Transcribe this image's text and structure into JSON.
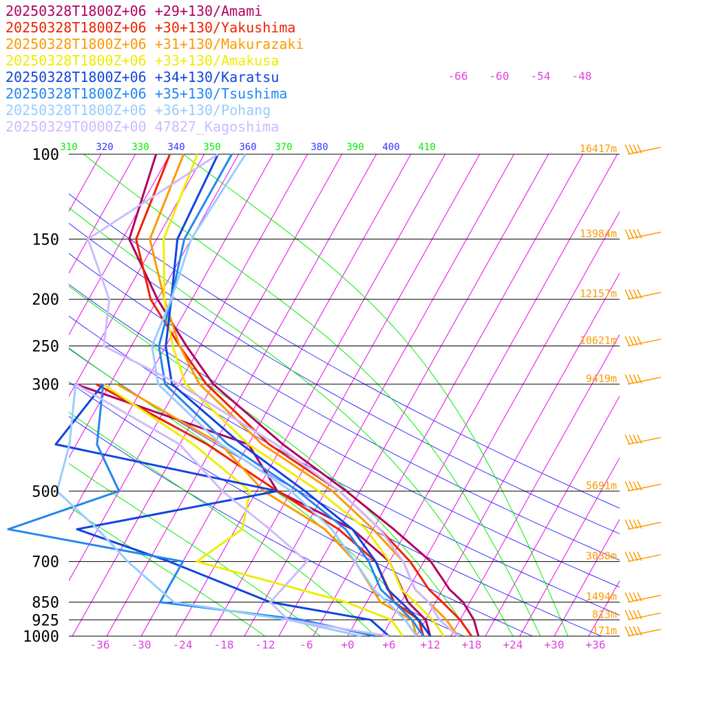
{
  "chart_data": {
    "type": "line",
    "title": "",
    "xlabel": "",
    "ylabel": "",
    "xlim": [
      -40,
      40
    ],
    "plim": [
      1000,
      100
    ],
    "legend_position": "top-left",
    "colors": {
      "isobar": "#000000",
      "isotherm": "#ee00ee",
      "dry_adiabat": "#3333ff",
      "moist_adiabat": "#00ee00",
      "height_label": "#ff9900",
      "wind_barb": "#ff9900",
      "temp_tick": "#dd44dd"
    },
    "pressure_levels": [
      {
        "p": 100,
        "label": "100",
        "height": "16417m"
      },
      {
        "p": 150,
        "label": "150",
        "height": "13984m"
      },
      {
        "p": 200,
        "label": "200",
        "height": "12157m"
      },
      {
        "p": 250,
        "label": "250",
        "height": "10621m"
      },
      {
        "p": 300,
        "label": "300",
        "height": "9419m"
      },
      {
        "p": 500,
        "label": "500",
        "height": "5691m"
      },
      {
        "p": 700,
        "label": "700",
        "height": "3038m"
      },
      {
        "p": 850,
        "label": "850",
        "height": "1494m"
      },
      {
        "p": 925,
        "label": "925",
        "height": "813m"
      },
      {
        "p": 1000,
        "label": "1000",
        "height": "171m"
      }
    ],
    "temperature_ticks": [
      "-36",
      "-30",
      "-24",
      "-18",
      "-12",
      "-6",
      "+0",
      "+6",
      "+12",
      "+18",
      "+24",
      "+30",
      "+36"
    ],
    "temperature_tick_values": [
      -36,
      -30,
      -24,
      -18,
      -12,
      -6,
      0,
      6,
      12,
      18,
      24,
      30,
      36
    ],
    "upper_isotherm_labels": [
      "-66",
      "-60",
      "-54",
      "-48"
    ],
    "theta_labels": [
      {
        "text": "310",
        "color": "#00ee00"
      },
      {
        "text": "320",
        "color": "#3333ff"
      },
      {
        "text": "330",
        "color": "#00ee00"
      },
      {
        "text": "340",
        "color": "#3333ff"
      },
      {
        "text": "350",
        "color": "#00ee00"
      },
      {
        "text": "360",
        "color": "#3333ff"
      },
      {
        "text": "370",
        "color": "#00ee00"
      },
      {
        "text": "380",
        "color": "#3333ff"
      },
      {
        "text": "390",
        "color": "#00ee00"
      },
      {
        "text": "400",
        "color": "#3333ff"
      },
      {
        "text": "410",
        "color": "#00ee00"
      }
    ],
    "dry_adiabat_thetas": [
      290,
      300,
      310,
      320,
      330,
      340,
      350,
      360
    ],
    "moist_adiabat_surface_temps": [
      -12,
      -4,
      4,
      12,
      18,
      24,
      28,
      32
    ],
    "isotherm_range": [
      -160,
      40,
      5
    ],
    "wind_barb_levels": [
      100,
      150,
      200,
      250,
      300,
      400,
      500,
      600,
      700,
      850,
      925,
      1000
    ],
    "series": [
      {
        "name": "20250328T1800Z+06 +29+130/Amami",
        "color": "#b00060",
        "p": [
          100,
          150,
          200,
          250,
          300,
          400,
          500,
          600,
          700,
          800,
          850,
          925,
          1000
        ],
        "values": [
          -67,
          -64,
          -55,
          -47,
          -40,
          -25,
          -12,
          -2,
          6,
          11,
          14,
          17,
          19
        ]
      },
      {
        "name": "20250328T1800Z+06 +30+130/Yakushima",
        "color": "#ee2200",
        "p": [
          100,
          150,
          200,
          250,
          300,
          400,
          500,
          600,
          700,
          800,
          850,
          925,
          1000
        ],
        "values": [
          -65,
          -63,
          -56,
          -48,
          -41,
          -27,
          -13,
          -4,
          3,
          8,
          11,
          15,
          18
        ]
      },
      {
        "name": "20250328T1800Z+06 +31+130/Makurazaki",
        "color": "#ff9900",
        "p": [
          100,
          150,
          200,
          250,
          300,
          400,
          500,
          600,
          700,
          800,
          850,
          925,
          1000
        ],
        "values": [
          -63,
          -61,
          -54,
          -48,
          -42,
          -28,
          -14,
          -5,
          2,
          6,
          9,
          13,
          16
        ]
      },
      {
        "name": "20250328T1800Z+06 +33+130/Amakusa",
        "color": "#eeee00",
        "p": [
          100,
          150,
          200,
          250,
          300,
          400,
          500,
          600,
          700,
          800,
          850,
          925,
          1000
        ],
        "values": [
          -61,
          -59,
          -54,
          -49,
          -44,
          -30,
          -16,
          -6,
          0,
          4,
          7,
          11,
          14
        ]
      },
      {
        "name": "20250328T1800Z+06 +34+130/Karatsu",
        "color": "#1144dd",
        "p": [
          100,
          150,
          200,
          250,
          300,
          400,
          500,
          600,
          700,
          800,
          850,
          925,
          1000
        ],
        "values": [
          -58,
          -57,
          -53,
          -50,
          -46,
          -31,
          -18,
          -8,
          -2,
          2,
          5,
          9,
          12
        ]
      },
      {
        "name": "20250328T1800Z+06 +35+130/Tsushima",
        "color": "#2288ee",
        "p": [
          100,
          150,
          200,
          250,
          300,
          400,
          500,
          600,
          700,
          800,
          850,
          925,
          1000
        ],
        "values": [
          -56,
          -56,
          -53,
          -51,
          -47,
          -33,
          -19,
          -9,
          -3,
          1,
          4,
          8,
          11
        ]
      },
      {
        "name": "20250328T1800Z+06 +36+130/Pohang",
        "color": "#99ccff",
        "p": [
          100,
          150,
          200,
          250,
          300,
          400,
          500,
          600,
          700,
          800,
          850,
          925,
          1000
        ],
        "values": [
          -54,
          -55,
          -53,
          -52,
          -48,
          -34,
          -20,
          -11,
          -5,
          0,
          3,
          7,
          10
        ]
      },
      {
        "name": "20250329T0000Z+00 47827_Kagoshima",
        "color": "#ccbbff",
        "p": [
          100,
          150,
          200,
          250,
          300,
          400,
          500,
          600,
          700,
          800,
          850,
          925,
          1000
        ],
        "values": [
          -58,
          -70,
          -62,
          -59,
          -45,
          -26,
          -13,
          -4,
          2,
          6,
          9,
          12,
          16
        ]
      }
    ],
    "dewpoint_series": [
      {
        "color": "#b00060",
        "p": [
          300,
          400,
          500,
          600,
          700,
          850,
          925,
          1000
        ],
        "values": [
          -60,
          -30,
          -22,
          -8,
          0,
          6,
          10,
          12
        ]
      },
      {
        "color": "#ee2200",
        "p": [
          300,
          400,
          500,
          600,
          700,
          850,
          925,
          1000
        ],
        "values": [
          -57,
          -36,
          -22,
          -10,
          -2,
          4,
          9,
          11
        ]
      },
      {
        "color": "#ff9900",
        "p": [
          300,
          400,
          500,
          600,
          700,
          850,
          925,
          1000
        ],
        "values": [
          -54,
          -34,
          -24,
          -12,
          -5,
          2,
          8,
          10
        ]
      },
      {
        "color": "#eeee00",
        "p": [
          300,
          400,
          500,
          600,
          700,
          850,
          925,
          1000
        ],
        "values": [
          -56,
          -38,
          -26,
          -24,
          -28,
          -3,
          5,
          8
        ]
      },
      {
        "color": "#1144dd",
        "p": [
          300,
          400,
          500,
          600,
          700,
          850,
          925,
          1000
        ],
        "values": [
          -56,
          -58,
          -22,
          -48,
          -32,
          -14,
          2,
          6
        ]
      },
      {
        "color": "#2288ee",
        "p": [
          300,
          400,
          500,
          600,
          700,
          850,
          925,
          1000
        ],
        "values": [
          -56,
          -52,
          -45,
          -58,
          -30,
          -30,
          -8,
          4
        ]
      },
      {
        "color": "#99ccff",
        "p": [
          300,
          400,
          500,
          600,
          700,
          850,
          925,
          1000
        ],
        "values": [
          -60,
          -56,
          -54,
          -45,
          -38,
          -28,
          -10,
          2
        ]
      },
      {
        "color": "#ccbbff",
        "p": [
          300,
          400,
          500,
          600,
          700,
          850,
          925,
          1000
        ],
        "values": [
          -60,
          -40,
          -30,
          -20,
          -12,
          -14,
          -10,
          6
        ]
      }
    ]
  }
}
